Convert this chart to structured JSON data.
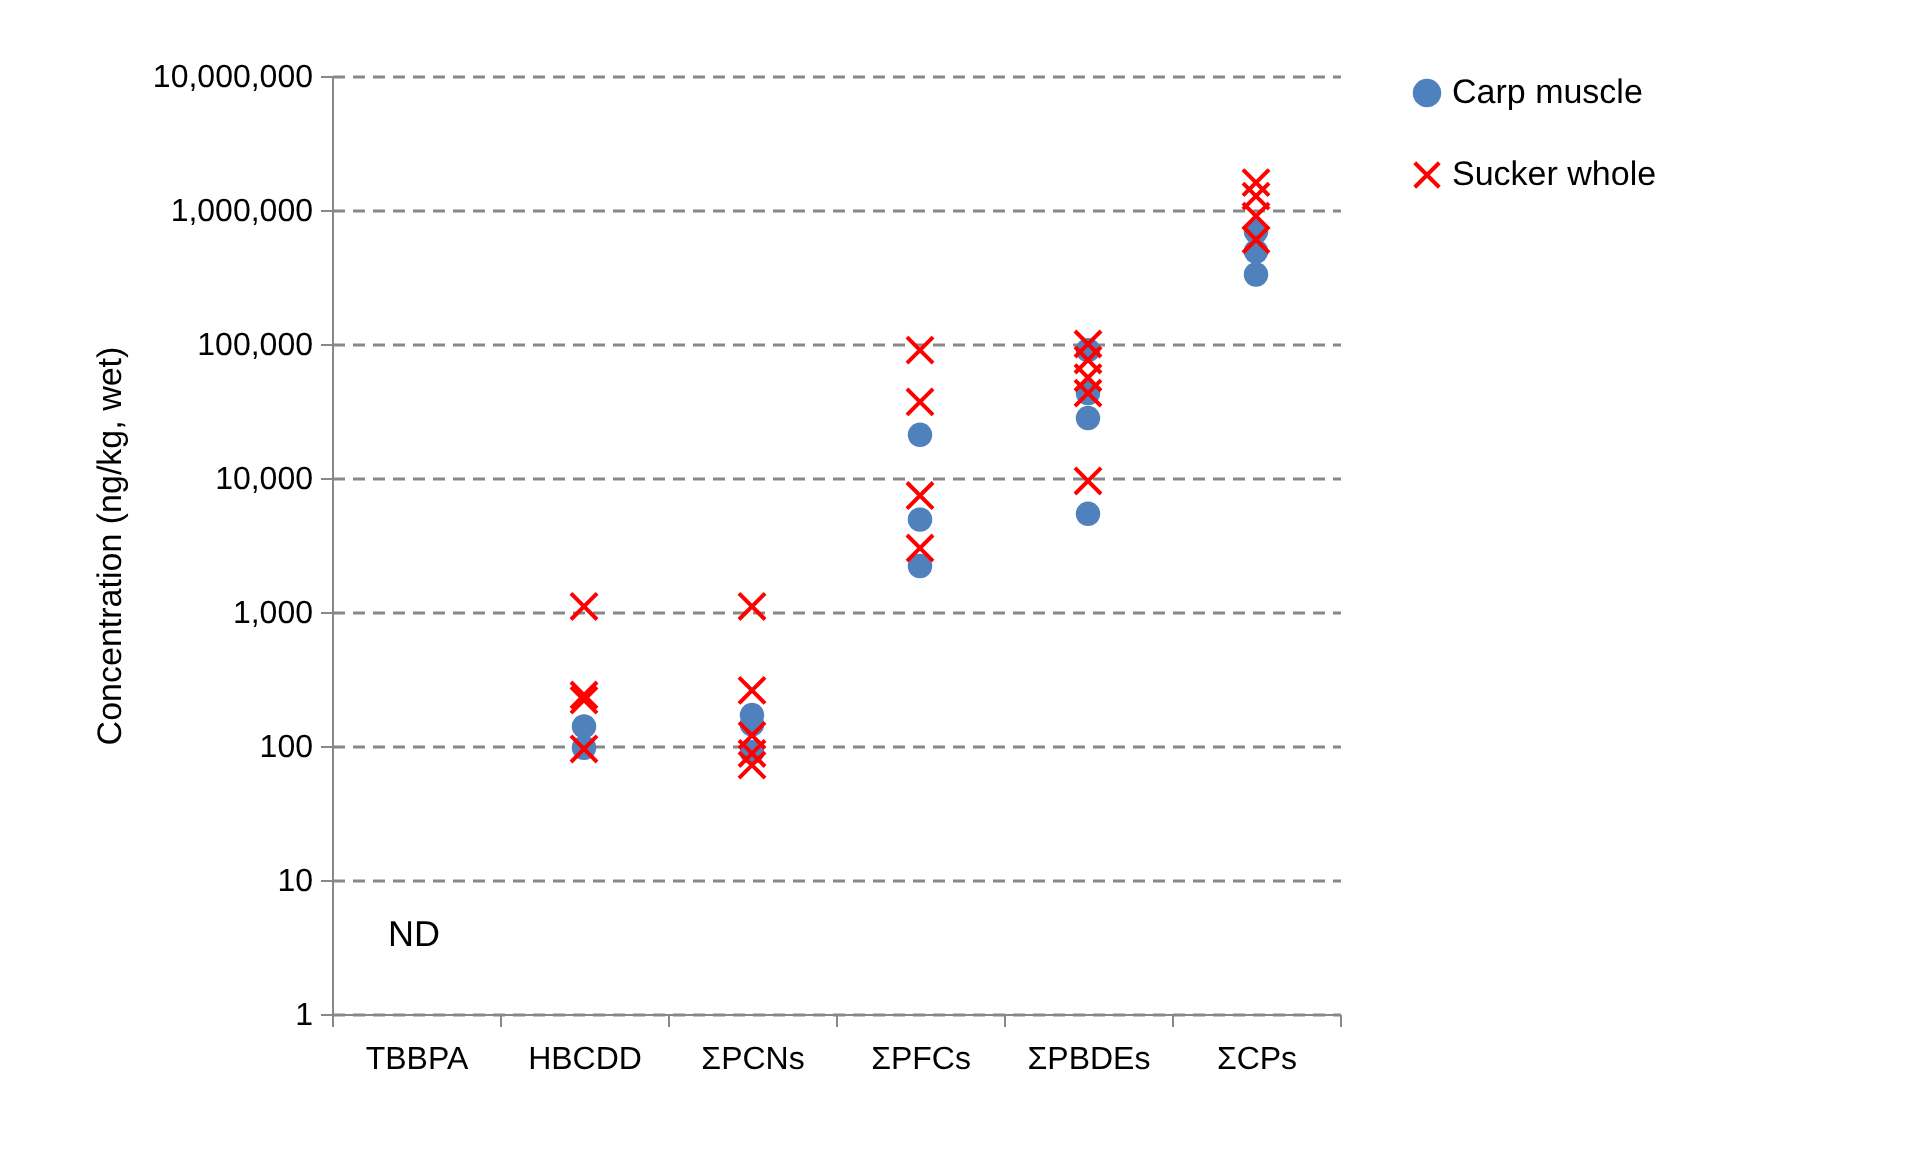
{
  "chart_data": {
    "type": "scatter",
    "ylabel": "Concentration (ng/kg, wet)",
    "categories": [
      "TBBPA",
      "HBCDD",
      "ΣPCNs",
      "ΣPFCs",
      "ΣPBDEs",
      "ΣCPs"
    ],
    "log": "y",
    "ylim": [
      1,
      10000000
    ],
    "yticks": [
      {
        "value": 1,
        "label": "1"
      },
      {
        "value": 10,
        "label": "10"
      },
      {
        "value": 100,
        "label": "100"
      },
      {
        "value": 1000,
        "label": "1,000"
      },
      {
        "value": 10000,
        "label": "10,000"
      },
      {
        "value": 100000,
        "label": "100,000"
      },
      {
        "value": 1000000,
        "label": "1,000,000"
      },
      {
        "value": 10000000,
        "label": "10,000,000"
      }
    ],
    "grid": "y",
    "legend": "right",
    "series": [
      {
        "name": "Carp muscle",
        "color": "#4f81bd",
        "marker": "circle",
        "x": [
          "HBCDD",
          "HBCDD",
          "ΣPCNs",
          "ΣPCNs",
          "ΣPCNs",
          "ΣPFCs",
          "ΣPFCs",
          "ΣPFCs",
          "ΣPBDEs",
          "ΣPBDEs",
          "ΣPBDEs",
          "ΣPBDEs",
          "ΣCPs",
          "ΣCPs",
          "ΣCPs"
        ],
        "values": [
          140,
          97,
          170,
          145,
          90,
          21000,
          4900,
          2200,
          90000,
          43000,
          28000,
          5400,
          690000,
          490000,
          330000
        ]
      },
      {
        "name": "Sucker whole",
        "color": "#ff0000",
        "marker": "cross",
        "x": [
          "HBCDD",
          "HBCDD",
          "HBCDD",
          "HBCDD",
          "ΣPCNs",
          "ΣPCNs",
          "ΣPCNs",
          "ΣPCNs",
          "ΣPCNs",
          "ΣPFCs",
          "ΣPFCs",
          "ΣPFCs",
          "ΣPFCs",
          "ΣPBDEs",
          "ΣPBDEs",
          "ΣPBDEs",
          "ΣPBDEs",
          "ΣPBDEs",
          "ΣCPs",
          "ΣCPs",
          "ΣCPs",
          "ΣCPs"
        ],
        "values": [
          1100,
          240,
          220,
          95,
          1100,
          260,
          120,
          88,
          72,
          90000,
          37000,
          7400,
          3000,
          100000,
          76000,
          56000,
          43000,
          9500,
          1600000,
          1270000,
          900000,
          600000
        ]
      }
    ],
    "annotations": [
      "ND"
    ]
  }
}
